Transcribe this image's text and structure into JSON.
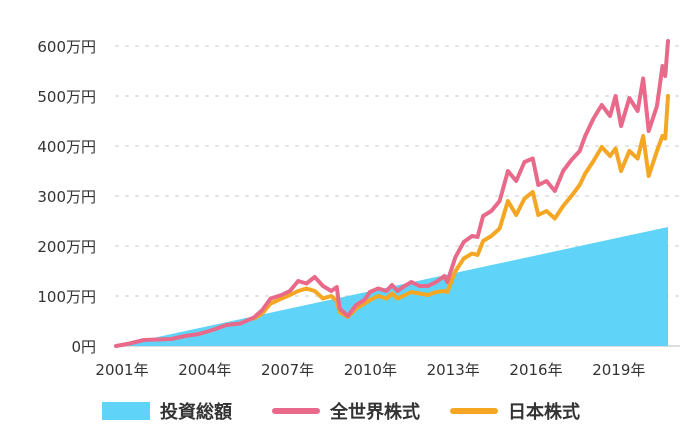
{
  "chart_data": {
    "type": "line",
    "title": "",
    "xlabel": "",
    "ylabel": "",
    "ylim": [
      0,
      600
    ],
    "xlim": [
      2001,
      2021
    ],
    "y_unit": "万円",
    "grid": "horizontal dotted",
    "legend_position": "bottom",
    "y_ticks": [
      0,
      100,
      200,
      300,
      400,
      500,
      600
    ],
    "y_tick_labels": [
      "0円",
      "100万円",
      "200万円",
      "300万円",
      "400万円",
      "500万円",
      "600万円"
    ],
    "x_ticks": [
      2001,
      2004,
      2007,
      2010,
      2013,
      2016,
      2019
    ],
    "x_tick_labels": [
      "2001年",
      "2004年",
      "2007年",
      "2010年",
      "2013年",
      "2016年",
      "2019年"
    ],
    "series": [
      {
        "name": "投資総額",
        "type": "area",
        "color": "#5fd4f8",
        "points": [
          [
            2001.0,
            0
          ],
          [
            2021.0,
            238
          ]
        ]
      },
      {
        "name": "全世界株式",
        "type": "line",
        "color": "#e8698a",
        "points": [
          [
            2001.0,
            0
          ],
          [
            2001.5,
            5
          ],
          [
            2002.0,
            12
          ],
          [
            2002.5,
            13
          ],
          [
            2003.0,
            14
          ],
          [
            2003.5,
            20
          ],
          [
            2004.0,
            24
          ],
          [
            2004.5,
            32
          ],
          [
            2005.0,
            42
          ],
          [
            2005.5,
            45
          ],
          [
            2006.0,
            57
          ],
          [
            2006.3,
            72
          ],
          [
            2006.6,
            95
          ],
          [
            2007.0,
            102
          ],
          [
            2007.3,
            110
          ],
          [
            2007.6,
            130
          ],
          [
            2007.9,
            125
          ],
          [
            2008.2,
            138
          ],
          [
            2008.5,
            120
          ],
          [
            2008.8,
            110
          ],
          [
            2009.0,
            118
          ],
          [
            2009.1,
            75
          ],
          [
            2009.4,
            60
          ],
          [
            2009.7,
            82
          ],
          [
            2010.0,
            92
          ],
          [
            2010.2,
            108
          ],
          [
            2010.5,
            115
          ],
          [
            2010.8,
            110
          ],
          [
            2011.0,
            122
          ],
          [
            2011.2,
            110
          ],
          [
            2011.4,
            118
          ],
          [
            2011.7,
            128
          ],
          [
            2012.0,
            120
          ],
          [
            2012.3,
            120
          ],
          [
            2012.6,
            128
          ],
          [
            2012.9,
            140
          ],
          [
            2013.0,
            128
          ],
          [
            2013.3,
            178
          ],
          [
            2013.6,
            208
          ],
          [
            2013.9,
            220
          ],
          [
            2014.1,
            218
          ],
          [
            2014.3,
            260
          ],
          [
            2014.6,
            270
          ],
          [
            2014.9,
            290
          ],
          [
            2015.2,
            350
          ],
          [
            2015.5,
            330
          ],
          [
            2015.8,
            368
          ],
          [
            2016.1,
            375
          ],
          [
            2016.3,
            322
          ],
          [
            2016.6,
            330
          ],
          [
            2016.9,
            310
          ],
          [
            2017.2,
            350
          ],
          [
            2017.5,
            372
          ],
          [
            2017.8,
            390
          ],
          [
            2018.0,
            420
          ],
          [
            2018.3,
            455
          ],
          [
            2018.6,
            482
          ],
          [
            2018.9,
            460
          ],
          [
            2019.1,
            500
          ],
          [
            2019.3,
            440
          ],
          [
            2019.6,
            496
          ],
          [
            2019.9,
            470
          ],
          [
            2020.1,
            535
          ],
          [
            2020.3,
            430
          ],
          [
            2020.6,
            480
          ],
          [
            2020.8,
            560
          ],
          [
            2020.9,
            540
          ],
          [
            2021.0,
            610
          ]
        ]
      },
      {
        "name": "日本株式",
        "type": "line",
        "color": "#f5a623",
        "points": [
          [
            2006.0,
            55
          ],
          [
            2006.3,
            65
          ],
          [
            2006.6,
            85
          ],
          [
            2007.0,
            95
          ],
          [
            2007.3,
            102
          ],
          [
            2007.6,
            110
          ],
          [
            2007.9,
            115
          ],
          [
            2008.2,
            110
          ],
          [
            2008.5,
            95
          ],
          [
            2008.8,
            100
          ],
          [
            2009.0,
            90
          ],
          [
            2009.1,
            68
          ],
          [
            2009.4,
            58
          ],
          [
            2009.7,
            75
          ],
          [
            2010.0,
            85
          ],
          [
            2010.2,
            92
          ],
          [
            2010.5,
            100
          ],
          [
            2010.8,
            95
          ],
          [
            2011.0,
            105
          ],
          [
            2011.2,
            95
          ],
          [
            2011.4,
            100
          ],
          [
            2011.7,
            108
          ],
          [
            2012.0,
            105
          ],
          [
            2012.3,
            102
          ],
          [
            2012.6,
            108
          ],
          [
            2012.9,
            110
          ],
          [
            2013.0,
            108
          ],
          [
            2013.3,
            150
          ],
          [
            2013.6,
            175
          ],
          [
            2013.9,
            185
          ],
          [
            2014.1,
            182
          ],
          [
            2014.3,
            210
          ],
          [
            2014.6,
            220
          ],
          [
            2014.9,
            235
          ],
          [
            2015.2,
            290
          ],
          [
            2015.5,
            262
          ],
          [
            2015.8,
            295
          ],
          [
            2016.1,
            308
          ],
          [
            2016.3,
            262
          ],
          [
            2016.6,
            270
          ],
          [
            2016.9,
            255
          ],
          [
            2017.2,
            280
          ],
          [
            2017.5,
            300
          ],
          [
            2017.8,
            322
          ],
          [
            2018.0,
            345
          ],
          [
            2018.3,
            370
          ],
          [
            2018.6,
            398
          ],
          [
            2018.9,
            380
          ],
          [
            2019.1,
            395
          ],
          [
            2019.3,
            350
          ],
          [
            2019.6,
            390
          ],
          [
            2019.9,
            375
          ],
          [
            2020.1,
            420
          ],
          [
            2020.3,
            340
          ],
          [
            2020.6,
            390
          ],
          [
            2020.8,
            420
          ],
          [
            2020.9,
            415
          ],
          [
            2021.0,
            500
          ]
        ]
      }
    ]
  }
}
